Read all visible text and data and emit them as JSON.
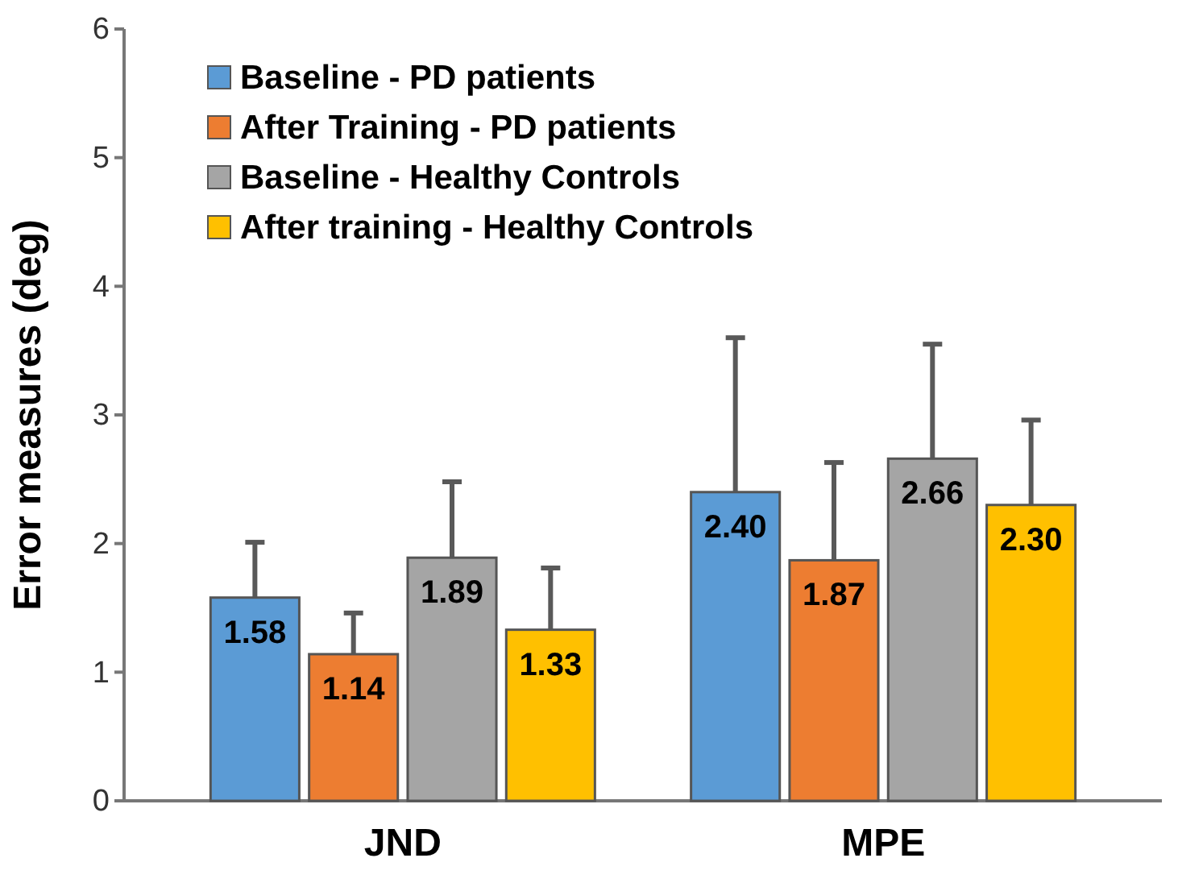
{
  "chart_data": {
    "type": "bar",
    "ylabel": "Error measures (deg)",
    "categories": [
      "JND",
      "MPE"
    ],
    "series": [
      {
        "name": "Baseline - PD patients",
        "color": "#5b9bd5",
        "values": [
          1.58,
          2.4
        ],
        "value_labels": [
          "1.58",
          "2.40"
        ],
        "errors": [
          [
            1.58,
            2.01
          ],
          [
            2.4,
            3.6
          ]
        ]
      },
      {
        "name": "After Training - PD patients",
        "color": "#ed7d31",
        "values": [
          1.14,
          1.87
        ],
        "value_labels": [
          "1.14",
          "1.87"
        ],
        "errors": [
          [
            1.14,
            1.46
          ],
          [
            1.87,
            2.63
          ]
        ]
      },
      {
        "name": "Baseline - Healthy Controls",
        "color": "#a5a5a5",
        "values": [
          1.89,
          2.66
        ],
        "value_labels": [
          "1.89",
          "2.66"
        ],
        "errors": [
          [
            1.89,
            2.48
          ],
          [
            2.66,
            3.55
          ]
        ]
      },
      {
        "name": "After training - Healthy Controls",
        "color": "#ffc000",
        "values": [
          1.33,
          2.3
        ],
        "value_labels": [
          "1.33",
          "2.30"
        ],
        "errors": [
          [
            1.33,
            1.81
          ],
          [
            2.3,
            2.96
          ]
        ]
      }
    ],
    "ylim": [
      0,
      6
    ],
    "yticks": [
      0,
      1,
      2,
      3,
      4,
      5,
      6
    ],
    "legend": "top left",
    "grid": false
  }
}
